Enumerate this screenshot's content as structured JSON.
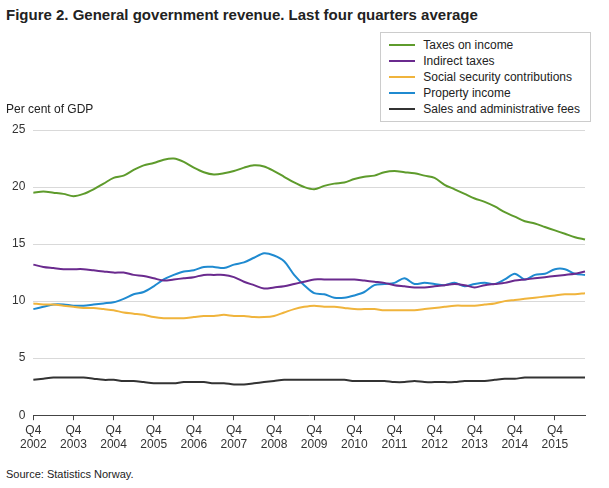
{
  "chart_data": {
    "type": "line",
    "title": "Figure 2. General government revenue. Last four quarters average",
    "ylabel": "Per cent of GDP",
    "source": "Source: Statistics Norway.",
    "categories": [
      "Q4 2002",
      null,
      null,
      null,
      "Q4 2003",
      null,
      null,
      null,
      "Q4 2004",
      null,
      null,
      null,
      "Q4 2005",
      null,
      null,
      null,
      "Q4 2006",
      null,
      null,
      null,
      "Q4 2007",
      null,
      null,
      null,
      "Q4 2008",
      null,
      null,
      null,
      "Q4 2009",
      null,
      null,
      null,
      "Q4 2010",
      null,
      null,
      null,
      "Q4 2011",
      null,
      null,
      null,
      "Q4 2012",
      null,
      null,
      null,
      "Q4 2013",
      null,
      null,
      null,
      "Q4 2014",
      null,
      null,
      null,
      "Q4 2015",
      null,
      null,
      null
    ],
    "series": [
      {
        "name": "Taxes on income",
        "color": "#5e9b2c",
        "values": [
          19.5,
          19.6,
          19.5,
          19.4,
          19.2,
          19.4,
          19.8,
          20.3,
          20.8,
          21.0,
          21.5,
          21.9,
          22.1,
          22.4,
          22.5,
          22.2,
          21.7,
          21.3,
          21.1,
          21.2,
          21.4,
          21.7,
          21.9,
          21.8,
          21.4,
          20.9,
          20.4,
          20.0,
          19.8,
          20.1,
          20.3,
          20.4,
          20.7,
          20.9,
          21.0,
          21.3,
          21.4,
          21.3,
          21.2,
          21.0,
          20.8,
          20.2,
          19.8,
          19.4,
          19.0,
          18.7,
          18.3,
          17.8,
          17.4,
          17.0,
          16.8,
          16.5,
          16.2,
          15.9,
          15.6,
          15.4
        ]
      },
      {
        "name": "Indirect taxes",
        "color": "#6a2a8e",
        "values": [
          13.2,
          13.0,
          12.9,
          12.8,
          12.8,
          12.8,
          12.7,
          12.6,
          12.5,
          12.5,
          12.3,
          12.2,
          12.0,
          11.8,
          11.9,
          12.0,
          12.1,
          12.3,
          12.3,
          12.3,
          12.1,
          11.7,
          11.4,
          11.1,
          11.2,
          11.3,
          11.5,
          11.7,
          11.9,
          11.9,
          11.9,
          11.9,
          11.9,
          11.8,
          11.7,
          11.6,
          11.4,
          11.3,
          11.2,
          11.2,
          11.3,
          11.4,
          11.5,
          11.4,
          11.2,
          11.4,
          11.5,
          11.6,
          11.8,
          11.9,
          12.0,
          12.1,
          12.2,
          12.3,
          12.4,
          12.6
        ]
      },
      {
        "name": "Social security contributions",
        "color": "#f0b43c",
        "values": [
          9.8,
          9.7,
          9.7,
          9.6,
          9.5,
          9.4,
          9.4,
          9.3,
          9.2,
          9.0,
          8.9,
          8.8,
          8.6,
          8.5,
          8.5,
          8.5,
          8.6,
          8.7,
          8.7,
          8.8,
          8.7,
          8.7,
          8.6,
          8.6,
          8.7,
          9.0,
          9.3,
          9.5,
          9.6,
          9.5,
          9.5,
          9.4,
          9.3,
          9.3,
          9.3,
          9.2,
          9.2,
          9.2,
          9.2,
          9.3,
          9.4,
          9.5,
          9.6,
          9.6,
          9.6,
          9.7,
          9.8,
          10.0,
          10.1,
          10.2,
          10.3,
          10.4,
          10.5,
          10.6,
          10.6,
          10.7
        ]
      },
      {
        "name": "Property income",
        "color": "#1f8ad0",
        "values": [
          9.3,
          9.5,
          9.7,
          9.7,
          9.6,
          9.6,
          9.7,
          9.8,
          9.9,
          10.2,
          10.6,
          10.8,
          11.3,
          11.9,
          12.3,
          12.6,
          12.7,
          13.0,
          13.0,
          12.9,
          13.2,
          13.4,
          13.8,
          14.2,
          14.0,
          13.5,
          12.3,
          11.4,
          10.7,
          10.6,
          10.3,
          10.3,
          10.5,
          10.8,
          11.4,
          11.5,
          11.6,
          12.0,
          11.5,
          11.6,
          11.5,
          11.4,
          11.6,
          11.3,
          11.5,
          11.6,
          11.5,
          11.9,
          12.4,
          11.9,
          12.3,
          12.4,
          12.8,
          12.8,
          12.4,
          12.3
        ]
      },
      {
        "name": "Sales and administrative fees",
        "color": "#333333",
        "values": [
          3.1,
          3.2,
          3.3,
          3.3,
          3.3,
          3.3,
          3.2,
          3.1,
          3.1,
          3.0,
          3.0,
          2.9,
          2.8,
          2.8,
          2.8,
          2.9,
          2.9,
          2.9,
          2.8,
          2.8,
          2.7,
          2.7,
          2.8,
          2.9,
          3.0,
          3.1,
          3.1,
          3.1,
          3.1,
          3.1,
          3.1,
          3.1,
          3.0,
          3.0,
          3.0,
          3.0,
          2.9,
          2.9,
          3.0,
          2.9,
          2.9,
          2.9,
          2.9,
          3.0,
          3.0,
          3.0,
          3.1,
          3.2,
          3.2,
          3.3,
          3.3,
          3.3,
          3.3,
          3.3,
          3.3,
          3.3
        ]
      }
    ],
    "ylim": [
      0,
      25
    ],
    "yticks": [
      0,
      5,
      10,
      15,
      20,
      25
    ],
    "grid": true,
    "legend": "top-right"
  }
}
